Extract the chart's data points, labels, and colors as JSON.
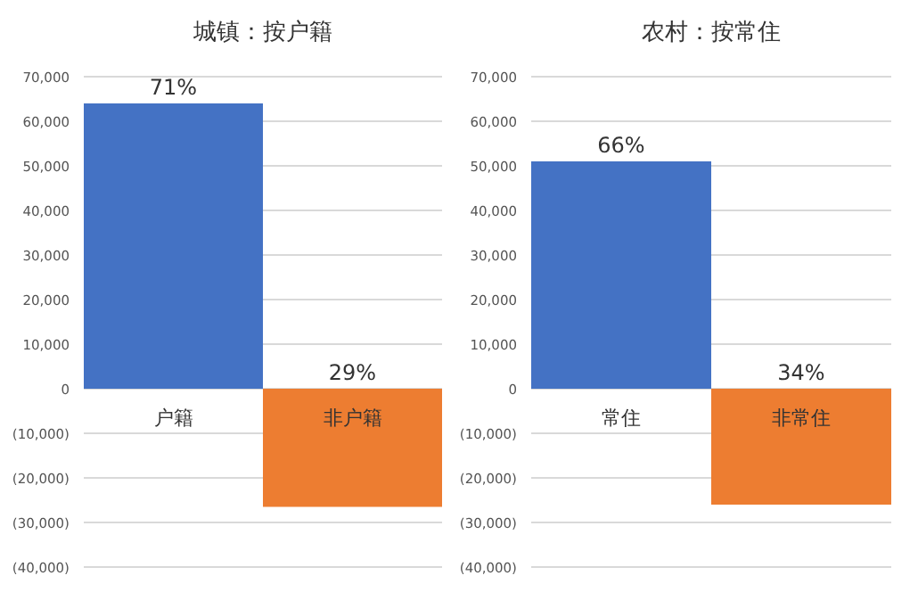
{
  "chart_data": [
    {
      "type": "bar",
      "title": "城镇：按户籍",
      "categories": [
        "户籍",
        "非户籍"
      ],
      "values": [
        64000,
        -26500
      ],
      "colors": [
        "#4472c4",
        "#ed7d31"
      ],
      "ylim": [
        -40000,
        70000
      ],
      "annotations": [
        {
          "text": "71%",
          "x": "户籍",
          "y": 64000
        },
        {
          "text": "29%",
          "x": "非户籍",
          "y": 0
        }
      ],
      "yticks": [
        {
          "value": -40000,
          "label": "(40,000)"
        },
        {
          "value": -30000,
          "label": "(30,000)"
        },
        {
          "value": -20000,
          "label": "(20,000)"
        },
        {
          "value": -10000,
          "label": "(10,000)"
        },
        0,
        {
          "value": 10000,
          "label": "10,000"
        },
        {
          "value": 20000,
          "label": "20,000"
        },
        {
          "value": 30000,
          "label": "30,000"
        },
        {
          "value": 40000,
          "label": "40,000"
        },
        {
          "value": 50000,
          "label": "50,000"
        },
        {
          "value": 60000,
          "label": "60,000"
        },
        {
          "value": 70000,
          "label": "70,000"
        }
      ],
      "grid": "y"
    },
    {
      "type": "bar",
      "title": "农村：按常住",
      "categories": [
        "常住",
        "非常住"
      ],
      "values": [
        51000,
        -26000
      ],
      "colors": [
        "#4472c4",
        "#ed7d31"
      ],
      "ylim": [
        -40000,
        70000
      ],
      "annotations": [
        {
          "text": "66%",
          "x": "常住",
          "y": 51000
        },
        {
          "text": "34%",
          "x": "非常住",
          "y": 0
        }
      ],
      "yticks": [
        {
          "value": -40000,
          "label": "(40,000)"
        },
        {
          "value": -30000,
          "label": "(30,000)"
        },
        {
          "value": -20000,
          "label": "(20,000)"
        },
        {
          "value": -10000,
          "label": "(10,000)"
        },
        0,
        {
          "value": 10000,
          "label": "10,000"
        },
        {
          "value": 20000,
          "label": "20,000"
        },
        {
          "value": 30000,
          "label": "30,000"
        },
        {
          "value": 40000,
          "label": "40,000"
        },
        {
          "value": 50000,
          "label": "50,000"
        },
        {
          "value": 60000,
          "label": "60,000"
        },
        {
          "value": 70000,
          "label": "70,000"
        }
      ],
      "grid": "y"
    }
  ]
}
